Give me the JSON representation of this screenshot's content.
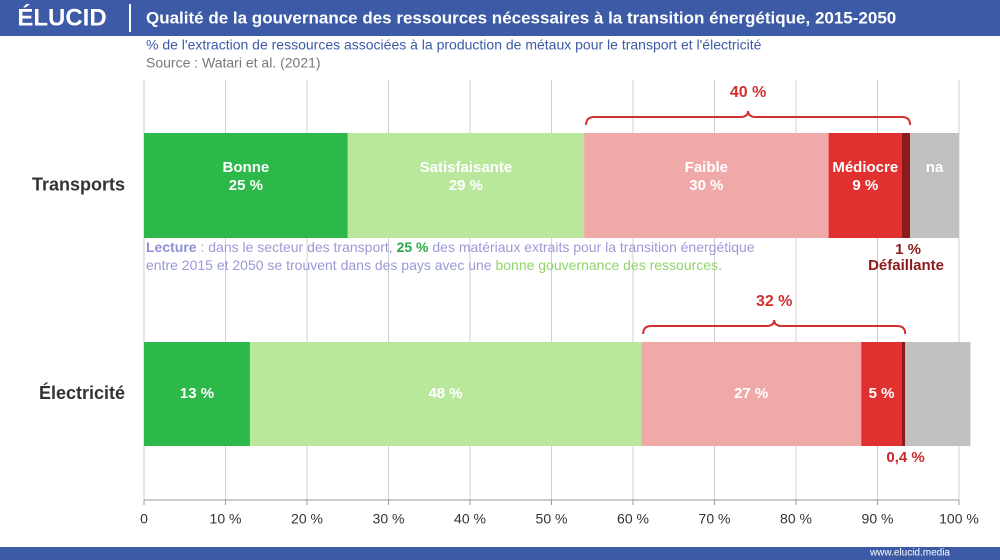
{
  "header": {
    "logo": "ÉLUCID",
    "footer": "www.elucid.media"
  },
  "chart_data": {
    "type": "bar",
    "orientation": "horizontal",
    "stacked": true,
    "title": "Qualité de la gouvernance des ressources nécessaires à la transition énergétique, 2015-2050",
    "subtitle": "% de l'extraction de ressources associées à la production de métaux pour le transport et l'électricité",
    "source": "Source : Watari et al. (2021)",
    "categories": [
      "Transports",
      "Électricité"
    ],
    "series": [
      {
        "name": "Bonne",
        "color": "#2db84a",
        "values": [
          25,
          13
        ],
        "value_labels": [
          "25 %",
          "13 %"
        ]
      },
      {
        "name": "Satisfaisante",
        "color": "#b9e89c",
        "values": [
          29,
          48
        ],
        "value_labels": [
          "29 %",
          "48 %"
        ]
      },
      {
        "name": "Faible",
        "color": "#f0a9a9",
        "values": [
          30,
          27
        ],
        "value_labels": [
          "30 %",
          "27 %"
        ]
      },
      {
        "name": "Médiocre",
        "color": "#e0302f",
        "values": [
          9,
          5
        ],
        "value_labels": [
          "9 %",
          "5 %"
        ]
      },
      {
        "name": "Défaillante",
        "color": "#8b1a1a",
        "values": [
          1,
          0.4
        ],
        "value_labels": [
          "1 %",
          "0,4 %"
        ]
      },
      {
        "name": "na",
        "color": "#c0c0c0",
        "values": [
          6,
          8
        ],
        "value_labels": [
          null,
          null
        ]
      }
    ],
    "xlim": [
      0,
      100
    ],
    "xticks": [
      0,
      {
        "value": 10,
        "label": "10 %"
      },
      {
        "value": 20,
        "label": "20 %"
      },
      {
        "value": 30,
        "label": "30 %"
      },
      {
        "value": 40,
        "label": "40 %"
      },
      {
        "value": 50,
        "label": "50 %"
      },
      {
        "value": 60,
        "label": "60 %"
      },
      {
        "value": 70,
        "label": "70 %"
      },
      {
        "value": 80,
        "label": "80 %"
      },
      {
        "value": 90,
        "label": "90 %"
      },
      {
        "value": 100,
        "label": "100 %"
      }
    ],
    "grid": true,
    "annotations": [
      "40 %",
      "32 %"
    ],
    "note": [
      [
        {
          "text": "Lecture",
          "color": "#8f8fd6",
          "bold": true
        },
        {
          "text": " : dans le secteur des transport, ",
          "color": "#9a9ad8",
          "bold": false
        },
        {
          "text": "25 %",
          "color": "#2aa845",
          "bold": true
        },
        {
          "text": " des matériaux extraits pour la transition énergétique",
          "color": "#9a9ad8",
          "bold": false
        }
      ],
      [
        {
          "text": "entre 2015 et 2050 se trouvent dans des pays avec une ",
          "color": "#9a9ad8",
          "bold": false
        },
        {
          "text": "bonne gouvernance des ressources",
          "color": "#8fd46a",
          "bold": false
        },
        {
          "text": ".",
          "color": "#9a9ad8",
          "bold": false
        }
      ]
    ]
  }
}
